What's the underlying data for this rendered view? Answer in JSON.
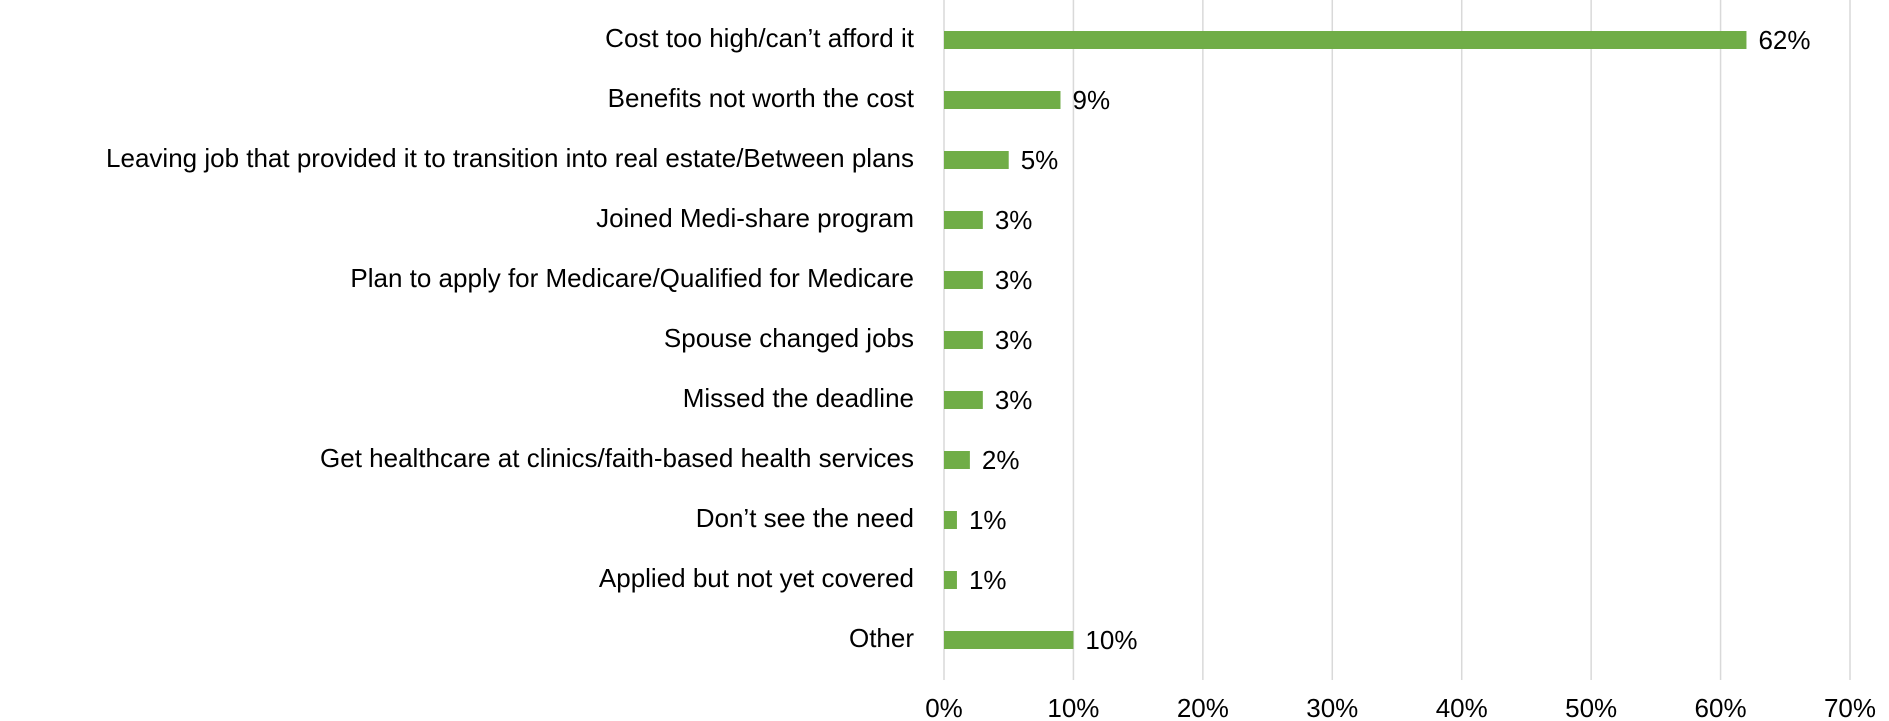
{
  "chart_data": {
    "type": "barh",
    "categories": [
      "Cost too high/can’t afford it",
      "Benefits not worth the cost",
      "Leaving job that provided it to transition into real estate/Between plans",
      "Joined Medi-share program",
      "Plan to apply for Medicare/Qualified for Medicare",
      "Spouse changed jobs",
      "Missed the deadline",
      "Get healthcare at clinics/faith-based health services",
      "Don’t see the need",
      "Applied but not yet covered",
      "Other"
    ],
    "values": [
      62,
      9,
      5,
      3,
      3,
      3,
      3,
      2,
      1,
      1,
      10
    ],
    "value_labels": [
      "62%",
      "9%",
      "5%",
      "3%",
      "3%",
      "3%",
      "3%",
      "2%",
      "1%",
      "1%",
      "10%"
    ],
    "color": "#70ad47",
    "xlim": [
      0,
      70
    ],
    "xticks": [
      {
        "value": 0,
        "label": "0%"
      },
      {
        "value": 10,
        "label": "10%"
      },
      {
        "value": 20,
        "label": "20%"
      },
      {
        "value": 30,
        "label": "30%"
      },
      {
        "value": 40,
        "label": "40%"
      },
      {
        "value": 50,
        "label": "50%"
      },
      {
        "value": 60,
        "label": "60%"
      },
      {
        "value": 70,
        "label": "70%"
      }
    ],
    "grid": true
  }
}
